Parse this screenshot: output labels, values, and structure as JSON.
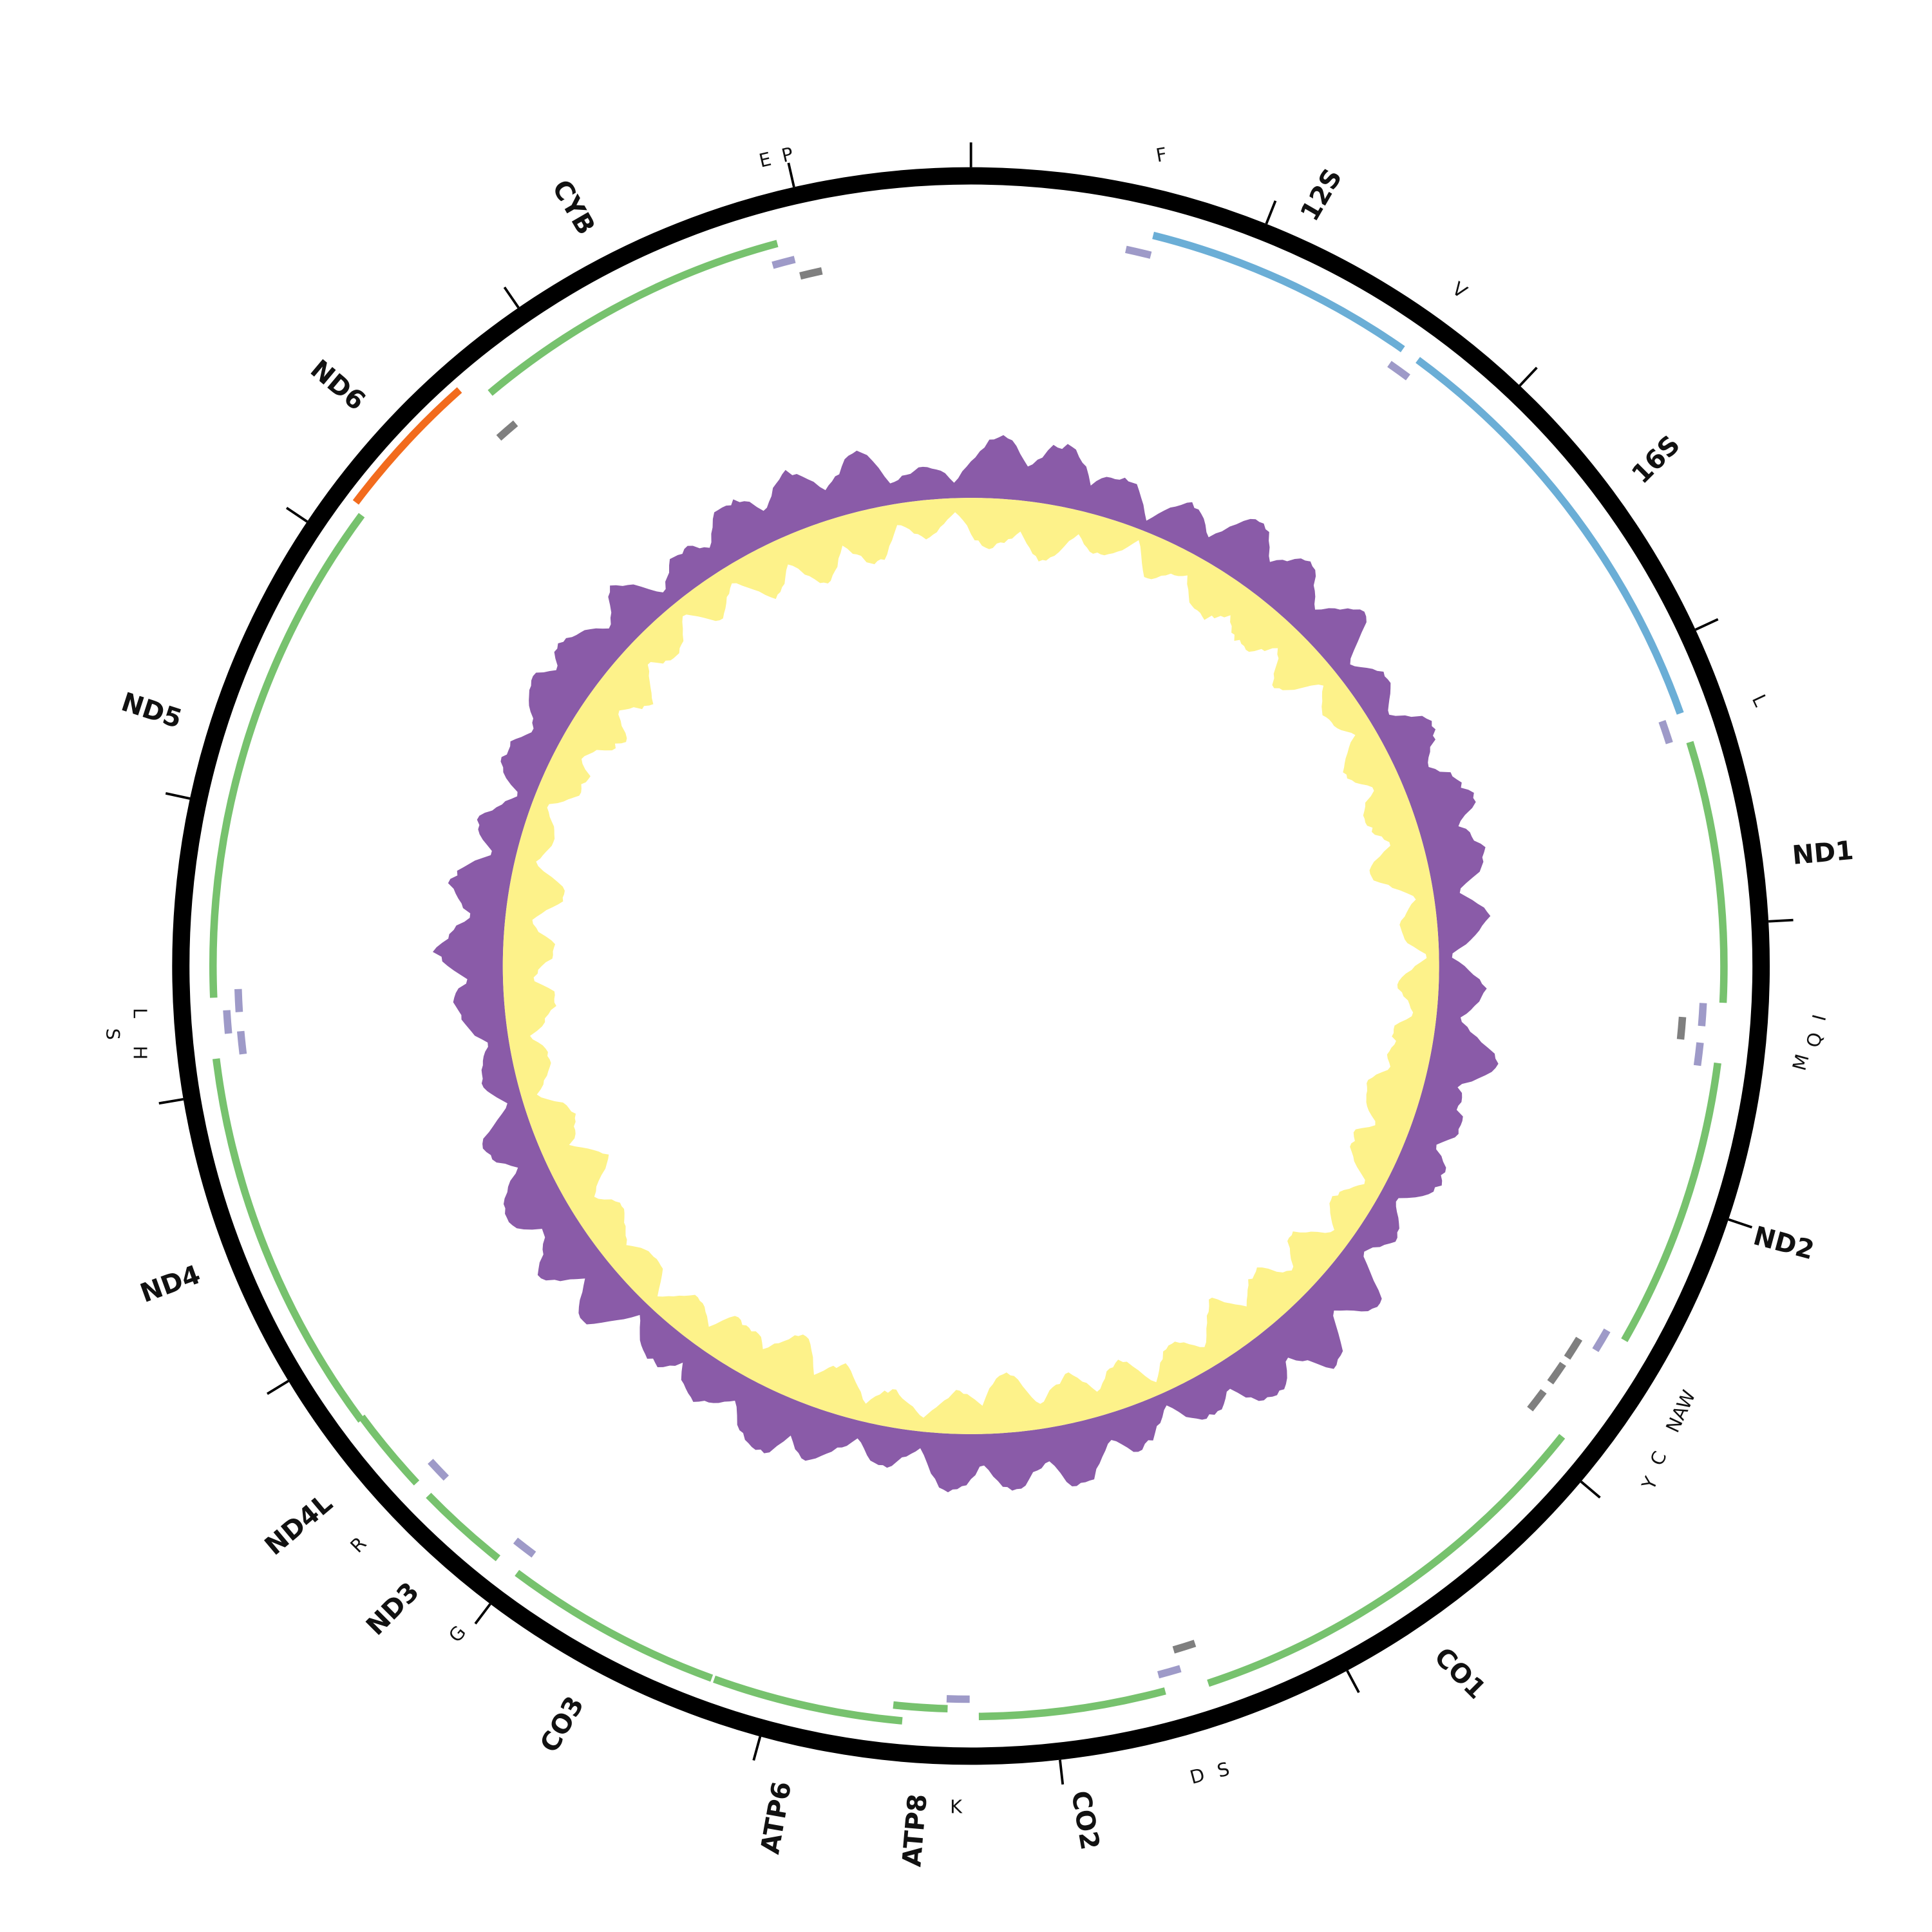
{
  "labels": [
    "E",
    "P",
    "CYB",
    "ND6",
    "ND5",
    "L",
    "S",
    "H",
    "ND4",
    "ND4L",
    "R",
    "ND3",
    "G",
    "CO3",
    "ATP6",
    "ATP8",
    "K",
    "CO2",
    "D",
    "S",
    "CO1",
    "Y",
    "C",
    "NAW",
    "ND2",
    "M",
    "Q",
    "I",
    "ND1",
    "L",
    "16S",
    "V",
    "12S",
    "F"
  ]
}
